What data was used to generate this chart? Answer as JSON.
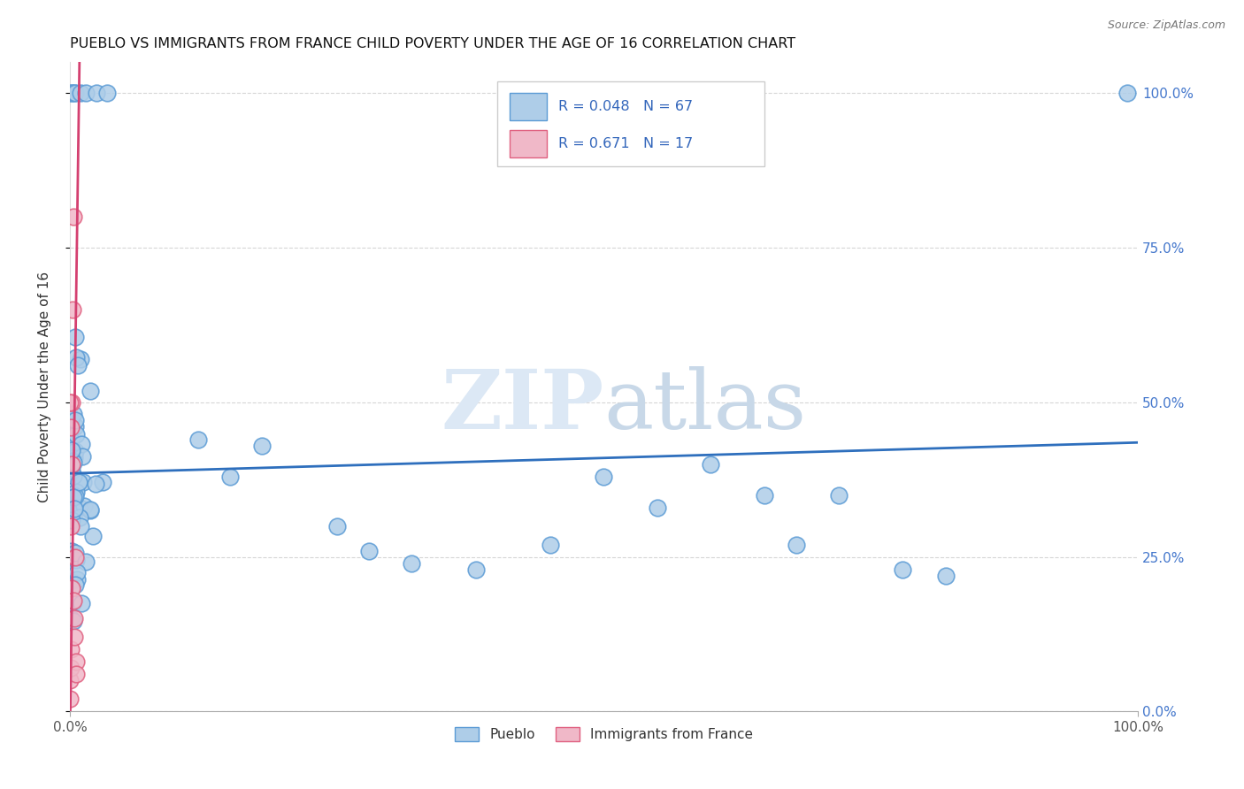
{
  "title": "PUEBLO VS IMMIGRANTS FROM FRANCE CHILD POVERTY UNDER THE AGE OF 16 CORRELATION CHART",
  "source": "Source: ZipAtlas.com",
  "ylabel": "Child Poverty Under the Age of 16",
  "watermark_zip": "ZIP",
  "watermark_atlas": "atlas",
  "legend_labels": [
    "Pueblo",
    "Immigrants from France"
  ],
  "pueblo_color": "#aecde8",
  "france_color": "#f0b8c8",
  "pueblo_edge": "#5b9bd5",
  "france_edge": "#e06080",
  "trendline_pueblo_color": "#2e6fbd",
  "trendline_france_color": "#d44070",
  "R_pueblo": 0.048,
  "N_pueblo": 67,
  "R_france": 0.671,
  "N_france": 17,
  "xlim": [
    0,
    1.0
  ],
  "ylim": [
    0,
    1.05
  ],
  "x_tick_positions": [
    0,
    1.0
  ],
  "x_tick_labels": [
    "0.0%",
    "100.0%"
  ],
  "y_tick_positions": [
    0.0,
    0.25,
    0.5,
    0.75,
    1.0
  ],
  "y_tick_labels_right": [
    "0.0%",
    "25.0%",
    "50.0%",
    "75.0%",
    "100.0%"
  ],
  "pueblo_trend_x": [
    0.0,
    1.0
  ],
  "pueblo_trend_y": [
    0.385,
    0.435
  ],
  "france_trend_x": [
    0.0,
    0.01
  ],
  "france_trend_y": [
    0.0,
    1.0
  ]
}
